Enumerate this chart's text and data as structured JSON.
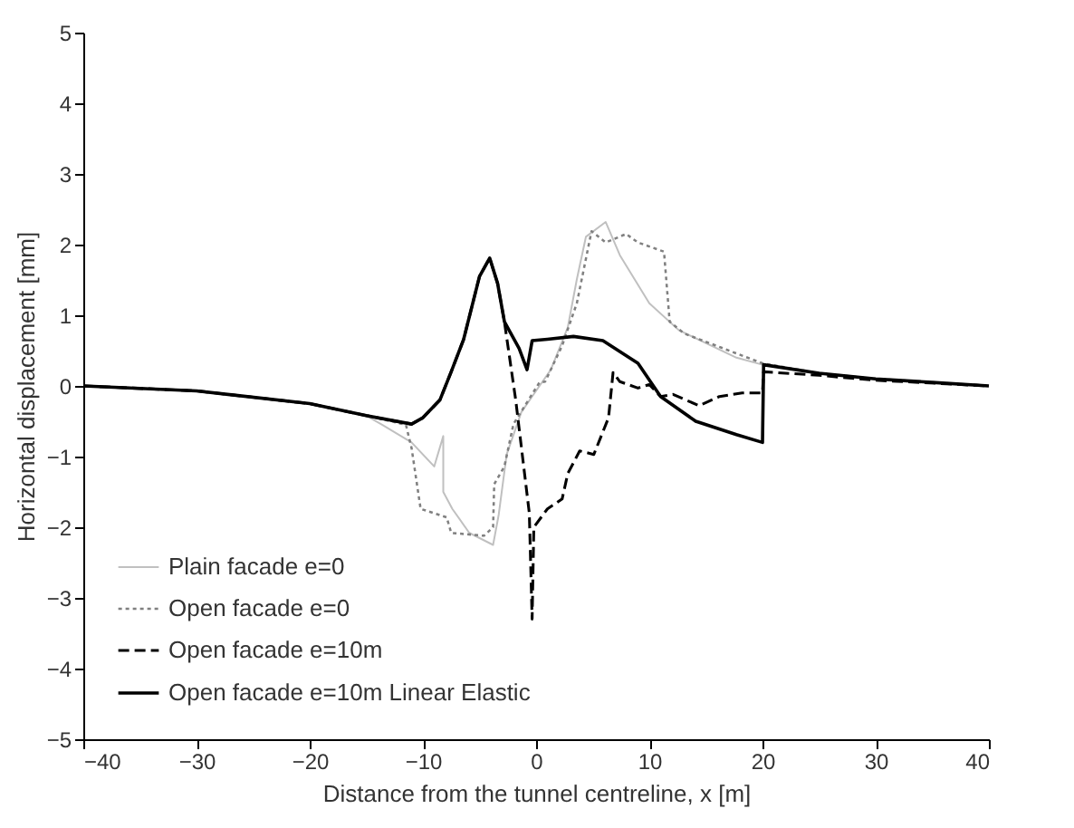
{
  "chart_data": {
    "type": "line",
    "xlabel": "Distance from the tunnel centreline, x [m]",
    "ylabel": "Horizontal displacement [mm]",
    "xlim": [
      -40,
      40
    ],
    "ylim": [
      -5,
      5
    ],
    "xticks": [
      -40,
      -30,
      -20,
      -10,
      0,
      10,
      20,
      30,
      40
    ],
    "yticks": [
      -5,
      -4,
      -3,
      -2,
      -1,
      0,
      1,
      2,
      3,
      4,
      5
    ],
    "grid": false,
    "legend": "bottom left",
    "marker": "none",
    "series": [
      {
        "name": "Plain facade e=0",
        "color": "#c0c0c0",
        "line_style": "solid",
        "x": [
          -40,
          -30,
          -20,
          -15,
          -13.6,
          -11,
          -9,
          -8.2,
          -8.2,
          -7.4,
          -5.9,
          -3.8,
          -3.3,
          -2.6,
          -1.3,
          0.3,
          1.3,
          2.8,
          3.6,
          4.4,
          6.15,
          7.4,
          10,
          12.6,
          17.7,
          20,
          25,
          30,
          40
        ],
        "values": [
          0,
          -0.07,
          -0.25,
          -0.42,
          -0.55,
          -0.8,
          -1.14,
          -0.71,
          -1.5,
          -1.74,
          -2.08,
          -2.25,
          -1.82,
          -0.97,
          -0.37,
          0.0,
          0.23,
          0.83,
          1.51,
          2.11,
          2.32,
          1.85,
          1.17,
          0.79,
          0.4,
          0.3,
          0.18,
          0.1,
          0
        ]
      },
      {
        "name": "Open facade e=0",
        "color": "#808080",
        "line_style": "dotted",
        "x": [
          -40,
          -30,
          -20,
          -15,
          -11.5,
          -11,
          -10.2,
          -7.9,
          -7.5,
          -4.6,
          -3.8,
          -3.7,
          -2.8,
          -2,
          0.3,
          0.8,
          2.3,
          3.6,
          4.9,
          6.15,
          7.95,
          9,
          11.3,
          11.8,
          13.1,
          17.7,
          20,
          25,
          30,
          40
        ],
        "values": [
          0,
          -0.07,
          -0.25,
          -0.42,
          -0.55,
          -0.88,
          -1.74,
          -1.86,
          -2.08,
          -2.12,
          -2.0,
          -1.39,
          -1.14,
          -0.54,
          0.05,
          0.06,
          0.57,
          1.17,
          2.19,
          2.03,
          2.15,
          2.03,
          1.9,
          0.91,
          0.74,
          0.46,
          0.32,
          0.18,
          0.1,
          0
        ]
      },
      {
        "name": "Open facade e=10m",
        "color": "#000000",
        "line_style": "dashed",
        "x": [
          -40,
          -30,
          -20,
          -15,
          -11,
          -10,
          -8.5,
          -7.5,
          -6.4,
          -5,
          -4.1,
          -3.4,
          -2.8,
          -1.8,
          -0.6,
          -0.35,
          -0.2,
          1,
          2.3,
          2.8,
          3.85,
          5.1,
          6.4,
          6.8,
          7.4,
          9,
          10,
          11,
          12.1,
          14.4,
          16.2,
          18.2,
          20,
          20.1,
          25,
          30,
          40
        ],
        "values": [
          0,
          -0.07,
          -0.25,
          -0.42,
          -0.54,
          -0.45,
          -0.2,
          0.2,
          0.66,
          1.55,
          1.81,
          1.45,
          0.91,
          -0.2,
          -1.8,
          -3.3,
          -2.0,
          -1.74,
          -1.6,
          -1.24,
          -0.92,
          -0.97,
          -0.45,
          0.19,
          0.06,
          -0.03,
          0.02,
          -0.15,
          -0.12,
          -0.28,
          -0.15,
          -0.1,
          -0.1,
          0.2,
          0.15,
          0.08,
          0
        ]
      },
      {
        "name": "Open facade e=10m Linear Elastic",
        "color": "#000000",
        "line_style": "solid",
        "x": [
          -40,
          -30,
          -20,
          -15,
          -11,
          -10,
          -8.5,
          -7.5,
          -6.4,
          -5,
          -4.1,
          -3.4,
          -2.8,
          -1.5,
          -0.8,
          -0.35,
          1,
          3.3,
          5.9,
          9,
          11,
          14.1,
          17.7,
          20,
          20.1,
          25,
          30,
          35,
          40
        ],
        "values": [
          0,
          -0.07,
          -0.25,
          -0.42,
          -0.54,
          -0.45,
          -0.2,
          0.2,
          0.66,
          1.55,
          1.81,
          1.45,
          0.91,
          0.53,
          0.23,
          0.64,
          0.66,
          0.7,
          0.64,
          0.32,
          -0.15,
          -0.5,
          -0.69,
          -0.8,
          0.3,
          0.18,
          0.1,
          0.05,
          0
        ]
      }
    ]
  }
}
